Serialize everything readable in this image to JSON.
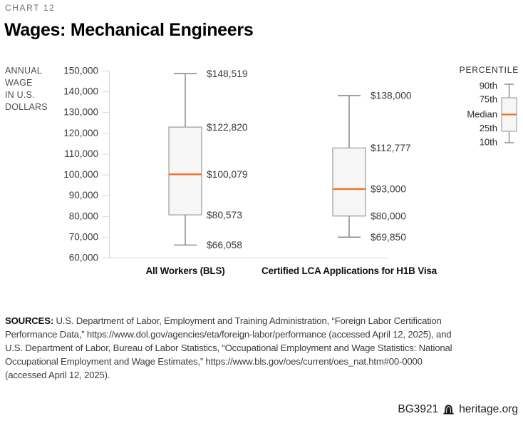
{
  "kicker": "CHART 12",
  "title": "Wages: Mechanical Engineers",
  "y_axis": {
    "unit_label_lines": [
      "ANNUAL",
      "WAGE",
      "IN U.S.",
      "DOLLARS"
    ]
  },
  "chart_data": {
    "type": "boxplot",
    "title": "Wages: Mechanical Engineers",
    "ylabel": "ANNUAL WAGE IN U.S. DOLLARS",
    "ylim": [
      60000,
      150000
    ],
    "y_tick_step": 10000,
    "grid": false,
    "categories": [
      "All Workers (BLS)",
      "Certified LCA Applications for H1B Visa"
    ],
    "series": [
      {
        "name": "All Workers (BLS)",
        "p10": 66058,
        "p25": 80573,
        "median": 100079,
        "p75": 122820,
        "p90": 148519
      },
      {
        "name": "Certified LCA Applications for H1B Visa",
        "p10": 69850,
        "p25": 80000,
        "median": 93000,
        "p75": 112777,
        "p90": 138000
      }
    ],
    "legend": {
      "title": "PERCENTILE",
      "labels": [
        "90th",
        "75th",
        "Median",
        "25th",
        "10th"
      ],
      "position": "top-right"
    }
  },
  "colors": {
    "median": "#ed7420",
    "box_fill": "#f6f6f7",
    "box_border": "#9b9b9e",
    "whisker": "#77787b",
    "axis": "#d8d8d8"
  },
  "sources": {
    "prefix": "SOURCES:",
    "lines": [
      "U.S. Department of Labor, Employment and Training Administration, “Foreign Labor Certification",
      "Performance Data,” https://www.dol.gov/agencies/eta/foreign-labor/performance (accessed April 12, 2025), and",
      "U.S. Department of Labor, Bureau of Labor Statistics, “Occupational Employment and Wage Statistics: National",
      "Occupational Employment and Wage Estimates,” https://www.bls.gov/oes/current/oes_nat.htm#00-0000",
      "(accessed April 12, 2025)."
    ]
  },
  "footer": {
    "doc_id": "BG3921",
    "site": "heritage.org",
    "icon": "liberty-bell-icon"
  }
}
